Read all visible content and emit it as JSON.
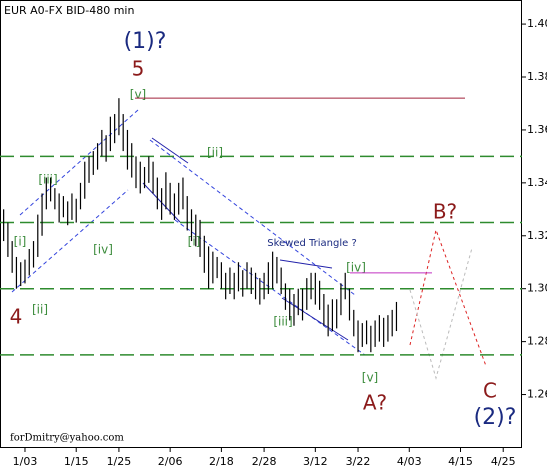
{
  "chart_data": {
    "type": "ohlc",
    "title": "EUR A0-FX BID-480 min",
    "x": [
      -2,
      -1,
      0,
      1,
      2,
      3,
      4,
      5,
      6,
      7,
      8,
      9,
      10,
      11,
      12,
      13,
      14,
      15,
      16,
      17,
      18,
      19,
      20,
      21,
      22,
      23,
      24,
      25,
      26,
      27,
      28,
      29,
      30,
      31,
      32,
      33,
      34,
      35,
      36,
      37,
      38,
      39,
      40,
      41,
      42,
      43,
      44,
      45,
      46,
      47,
      48,
      49,
      50,
      51,
      52,
      53,
      54,
      55,
      56,
      57,
      58,
      59,
      60,
      61,
      62,
      63,
      64,
      65,
      66,
      67,
      68,
      69,
      70,
      71,
      72,
      73,
      74,
      75,
      76,
      77,
      78,
      79,
      80,
      81,
      82,
      83,
      84,
      85,
      86,
      87,
      88,
      89,
      90
    ],
    "low": [
      1.318,
      1.312,
      1.306,
      1.3,
      1.301,
      1.302,
      1.305,
      1.308,
      1.312,
      1.32,
      1.33,
      1.333,
      1.33,
      1.325,
      1.327,
      1.324,
      1.326,
      1.325,
      1.33,
      1.334,
      1.34,
      1.343,
      1.345,
      1.35,
      1.348,
      1.352,
      1.355,
      1.358,
      1.352,
      1.345,
      1.342,
      1.338,
      1.336,
      1.338,
      1.34,
      1.336,
      1.33,
      1.326,
      1.33,
      1.328,
      1.326,
      1.328,
      1.33,
      1.322,
      1.318,
      1.316,
      1.312,
      1.306,
      1.3,
      1.302,
      1.304,
      1.3,
      1.296,
      1.298,
      1.296,
      1.299,
      1.297,
      1.3,
      1.298,
      1.296,
      1.294,
      1.296,
      1.298,
      1.3,
      1.302,
      1.298,
      1.292,
      1.288,
      1.286,
      1.29,
      1.288,
      1.292,
      1.296,
      1.294,
      1.292,
      1.286,
      1.282,
      1.284,
      1.285,
      1.29,
      1.296,
      1.288,
      1.282,
      1.276,
      1.278,
      1.279,
      1.276,
      1.278,
      1.28,
      1.278,
      1.28,
      1.282,
      1.284
    ],
    "high": [
      1.33,
      1.325,
      1.318,
      1.312,
      1.31,
      1.311,
      1.315,
      1.318,
      1.328,
      1.336,
      1.342,
      1.342,
      1.338,
      1.336,
      1.335,
      1.333,
      1.336,
      1.334,
      1.34,
      1.348,
      1.35,
      1.352,
      1.355,
      1.36,
      1.358,
      1.365,
      1.366,
      1.372,
      1.366,
      1.36,
      1.355,
      1.35,
      1.348,
      1.346,
      1.35,
      1.348,
      1.342,
      1.338,
      1.344,
      1.34,
      1.336,
      1.34,
      1.342,
      1.335,
      1.33,
      1.328,
      1.326,
      1.32,
      1.316,
      1.314,
      1.312,
      1.31,
      1.306,
      1.308,
      1.306,
      1.31,
      1.307,
      1.31,
      1.308,
      1.306,
      1.304,
      1.306,
      1.31,
      1.314,
      1.312,
      1.308,
      1.302,
      1.3,
      1.298,
      1.3,
      1.3,
      1.304,
      1.306,
      1.306,
      1.303,
      1.298,
      1.294,
      1.296,
      1.296,
      1.302,
      1.306,
      1.3,
      1.292,
      1.288,
      1.287,
      1.288,
      1.286,
      1.288,
      1.29,
      1.289,
      1.29,
      1.292,
      1.295
    ],
    "xlim": [
      -2.85,
      119.4
    ],
    "ylim": [
      1.2398,
      1.4091
    ],
    "xticks": [
      {
        "value": 3,
        "label": "1/03"
      },
      {
        "value": 15,
        "label": "1/15"
      },
      {
        "value": 25,
        "label": "1/25"
      },
      {
        "value": 37,
        "label": "2/06"
      },
      {
        "value": 49,
        "label": "2/18"
      },
      {
        "value": 59,
        "label": "2/28"
      },
      {
        "value": 71,
        "label": "3/12"
      },
      {
        "value": 81,
        "label": "3/22"
      },
      {
        "value": 93,
        "label": "4/03"
      },
      {
        "value": 105,
        "label": "4/15"
      },
      {
        "value": 115,
        "label": "4/25"
      }
    ],
    "yticks": [
      {
        "value": 1.26,
        "label": "1.26"
      },
      {
        "value": 1.28,
        "label": "1.28"
      },
      {
        "value": 1.3,
        "label": "1.30"
      },
      {
        "value": 1.32,
        "label": "1.32"
      },
      {
        "value": 1.34,
        "label": "1.34"
      },
      {
        "value": 1.36,
        "label": "1.36"
      },
      {
        "value": 1.38,
        "label": "1.38"
      },
      {
        "value": 1.4,
        "label": "1.40"
      }
    ],
    "levels": [
      1.35,
      1.325,
      1.3,
      1.275
    ],
    "resistance": 1.372,
    "triangle_level": 1.306,
    "annotations": [
      "(1)?",
      "5",
      "[v]",
      "[ii]",
      "[iii]",
      "[i]",
      "[iv]",
      "4",
      "[ii]",
      "[i]",
      "Skewed Triangle ?",
      "[iv]",
      "[iii]",
      "[v]",
      "A?",
      "B?",
      "C",
      "(2)?"
    ],
    "credit": "forDmitry@yahoo.com"
  }
}
